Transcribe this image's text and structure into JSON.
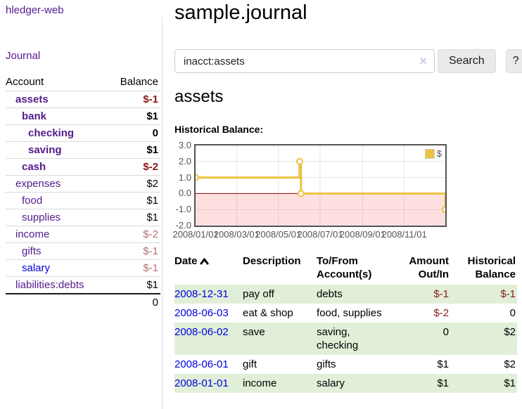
{
  "app": {
    "brand": "hledger-web",
    "nav": {
      "journal": "Journal"
    }
  },
  "sidebar": {
    "headers": {
      "account": "Account",
      "balance": "Balance"
    },
    "accounts": [
      {
        "name": "assets",
        "balance": "$-1",
        "depth": 1,
        "bold": true,
        "negative": true,
        "blue": false
      },
      {
        "name": "bank",
        "balance": "$1",
        "depth": 2,
        "bold": true,
        "negative": false,
        "blue": false
      },
      {
        "name": "checking",
        "balance": "0",
        "depth": 3,
        "bold": true,
        "negative": false,
        "blue": false
      },
      {
        "name": "saving",
        "balance": "$1",
        "depth": 3,
        "bold": true,
        "negative": false,
        "blue": false
      },
      {
        "name": "cash",
        "balance": "$-2",
        "depth": 2,
        "bold": true,
        "negative": true,
        "blue": false
      },
      {
        "name": "expenses",
        "balance": "$2",
        "depth": 1,
        "bold": false,
        "negative": false,
        "blue": false
      },
      {
        "name": "food",
        "balance": "$1",
        "depth": 2,
        "bold": false,
        "negative": false,
        "blue": false
      },
      {
        "name": "supplies",
        "balance": "$1",
        "depth": 2,
        "bold": false,
        "negative": false,
        "blue": false
      },
      {
        "name": "income",
        "balance": "$-2",
        "depth": 1,
        "bold": false,
        "negative": true,
        "blue": false
      },
      {
        "name": "gifts",
        "balance": "$-1",
        "depth": 2,
        "bold": false,
        "negative": true,
        "blue": false
      },
      {
        "name": "salary",
        "balance": "$-1",
        "depth": 2,
        "bold": false,
        "negative": true,
        "blue": true
      },
      {
        "name": "liabilities:debts",
        "balance": "$1",
        "depth": 1,
        "bold": false,
        "negative": false,
        "blue": false
      }
    ],
    "total": "0"
  },
  "header": {
    "title": "sample.journal"
  },
  "search": {
    "value": "inacct:assets",
    "clear_icon": "✕",
    "button_label": "Search",
    "help_label": "?"
  },
  "account_page": {
    "title": "assets",
    "chart_label": "Historical Balance:"
  },
  "chart_data": {
    "type": "line",
    "title": "Historical Balance:",
    "legend_label": "$",
    "legend_position": "top-right",
    "step": true,
    "series": [
      {
        "name": "$",
        "points": [
          [
            "2008-01-01",
            1
          ],
          [
            "2008-06-01",
            2
          ],
          [
            "2008-06-03",
            0
          ],
          [
            "2008-12-31",
            -1
          ]
        ]
      }
    ],
    "x_tick_labels": [
      "2008/01/01",
      "2008/03/01",
      "2008/05/01",
      "2008/07/01",
      "2008/09/01",
      "2008/11/01"
    ],
    "x_tick_days": [
      0,
      60,
      121,
      182,
      244,
      305
    ],
    "x_range_days": [
      0,
      365
    ],
    "y_ticks": [
      "3.0",
      "2.0",
      "1.0",
      "0.0",
      "-1.0",
      "-2.0"
    ],
    "ylim": [
      -2,
      3
    ],
    "line_days": [
      [
        0,
        1
      ],
      [
        152,
        1
      ],
      [
        152,
        2
      ],
      [
        154,
        2
      ],
      [
        154,
        0
      ],
      [
        365,
        0
      ],
      [
        365,
        -1
      ]
    ],
    "marker_days": [
      [
        0,
        1
      ],
      [
        152,
        2
      ],
      [
        154,
        0
      ],
      [
        365,
        -1
      ]
    ],
    "grid": true
  },
  "register": {
    "headers": {
      "date": "Date",
      "description": "Description",
      "to_from": [
        "To/From",
        "Account(s)"
      ],
      "amount": [
        "Amount",
        "Out/In"
      ],
      "balance": [
        "Historical",
        "Balance"
      ]
    },
    "rows": [
      {
        "date": "2008-12-31",
        "description": "pay off",
        "to_from": [
          "debts"
        ],
        "amount": "$-1",
        "amount_negative": true,
        "balance": "$-1",
        "balance_negative": true,
        "green": true
      },
      {
        "date": "2008-06-03",
        "description": "eat & shop",
        "to_from": [
          "food, supplies"
        ],
        "amount": "$-2",
        "amount_negative": true,
        "balance": "0",
        "balance_negative": false,
        "green": false
      },
      {
        "date": "2008-06-02",
        "description": "save",
        "to_from": [
          "saving,",
          "checking"
        ],
        "amount": "0",
        "amount_negative": false,
        "balance": "$2",
        "balance_negative": false,
        "green": true
      },
      {
        "date": "2008-06-01",
        "description": "gift",
        "to_from": [
          "gifts"
        ],
        "amount": "$1",
        "amount_negative": false,
        "balance": "$2",
        "balance_negative": false,
        "green": false
      },
      {
        "date": "2008-01-01",
        "description": "income",
        "to_from": [
          "salary"
        ],
        "amount": "$1",
        "amount_negative": false,
        "balance": "$1",
        "balance_negative": false,
        "green": true
      }
    ]
  },
  "colors": {
    "link_purple": "#551a8b",
    "link_blue": "#0000e0",
    "negative_dark": "#8b1a1a",
    "negative_light": "#b97070",
    "row_green": "#e1efd8",
    "chart_gold": "#edc240",
    "chart_negative_region": "rgba(255,0,0,0.12)",
    "chart_zero_line": "#8b0000",
    "chart_border": "#545454",
    "grid_line": "#e6e6e6"
  }
}
